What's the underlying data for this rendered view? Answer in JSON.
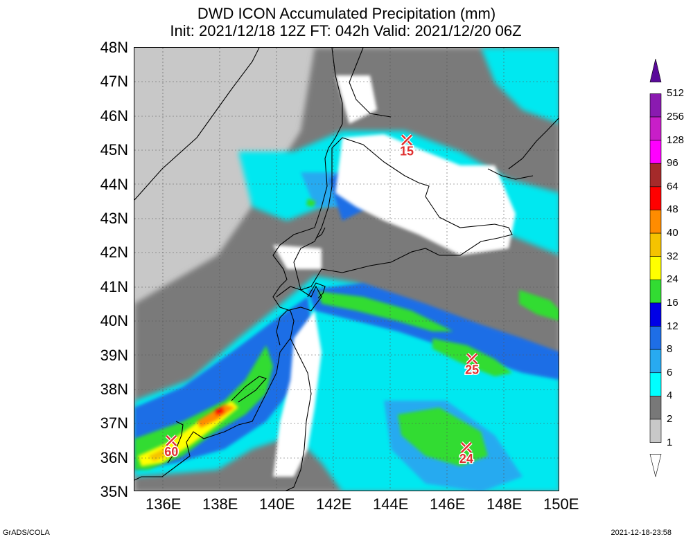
{
  "header": {
    "title": "DWD ICON Accumulated Precipitation (mm)",
    "subtitle": "Init: 2021/12/18 12Z  FT: 042h  Valid: 2021/12/20 06Z"
  },
  "map": {
    "lon_range": [
      135,
      150
    ],
    "lat_range": [
      35,
      48
    ],
    "lat_labels": [
      "48N",
      "47N",
      "46N",
      "45N",
      "44N",
      "43N",
      "42N",
      "41N",
      "40N",
      "39N",
      "38N",
      "37N",
      "36N",
      "35N"
    ],
    "lon_labels": [
      "136E",
      "138E",
      "140E",
      "142E",
      "144E",
      "146E",
      "148E",
      "150E"
    ],
    "markers": [
      {
        "label": "15",
        "lon": 144.6,
        "lat": 45.3
      },
      {
        "label": "25",
        "lon": 146.9,
        "lat": 38.9
      },
      {
        "label": "24",
        "lon": 146.7,
        "lat": 36.3
      },
      {
        "label": "60",
        "lon": 136.3,
        "lat": 36.5
      }
    ],
    "marker_color": "#e03030"
  },
  "colorbar": {
    "labels": [
      "512",
      "256",
      "128",
      "96",
      "64",
      "48",
      "40",
      "32",
      "24",
      "16",
      "12",
      "8",
      "6",
      "4",
      "2",
      "1"
    ],
    "colors": [
      "#5a0a9a",
      "#8a1ab0",
      "#c81ec8",
      "#ff00ff",
      "#a52a2a",
      "#ff0000",
      "#ff8c00",
      "#f5c300",
      "#ffff00",
      "#32dc32",
      "#0000e6",
      "#1e6ee6",
      "#28aaf0",
      "#00ffff",
      "#787878",
      "#c8c8c8",
      "#ffffff"
    ]
  },
  "footer": {
    "left": "GrADS/COLA",
    "right": "2021-12-18-23:58"
  }
}
